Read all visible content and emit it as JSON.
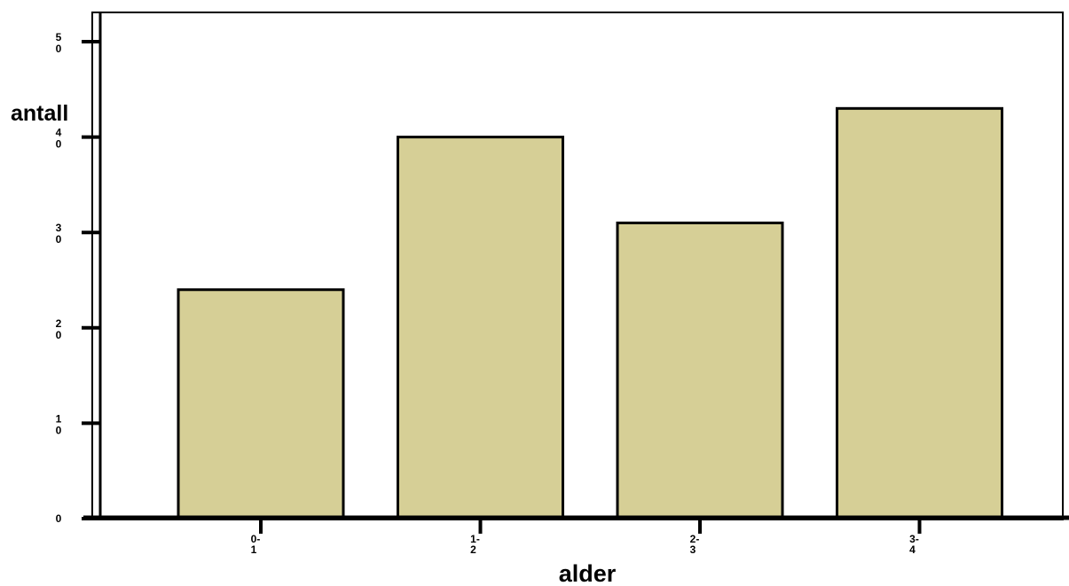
{
  "chart_data": {
    "type": "bar",
    "xlabel": "alder",
    "ylabel": "antall",
    "categories": [
      "0-1",
      "1-2",
      "2-3",
      "3-4"
    ],
    "category_tick_labels": [
      {
        "line1": "0-",
        "line2": "1"
      },
      {
        "line1": "1-",
        "line2": "2"
      },
      {
        "line1": "2-",
        "line2": "3"
      },
      {
        "line1": "3-",
        "line2": "4"
      }
    ],
    "values": [
      24,
      40,
      31,
      43
    ],
    "ylim": [
      0,
      50
    ],
    "yticks": [
      {
        "value": 0,
        "line1": "0",
        "line2": ""
      },
      {
        "value": 10,
        "line1": "1",
        "line2": "0"
      },
      {
        "value": 20,
        "line1": "2",
        "line2": "0"
      },
      {
        "value": 30,
        "line1": "3",
        "line2": "0"
      },
      {
        "value": 40,
        "line1": "4",
        "line2": "0"
      },
      {
        "value": 50,
        "line1": "5",
        "line2": "0"
      }
    ],
    "grid": false,
    "legend": "none",
    "bar_color": "#d6cf96",
    "bar_edge_color": "#000000"
  }
}
